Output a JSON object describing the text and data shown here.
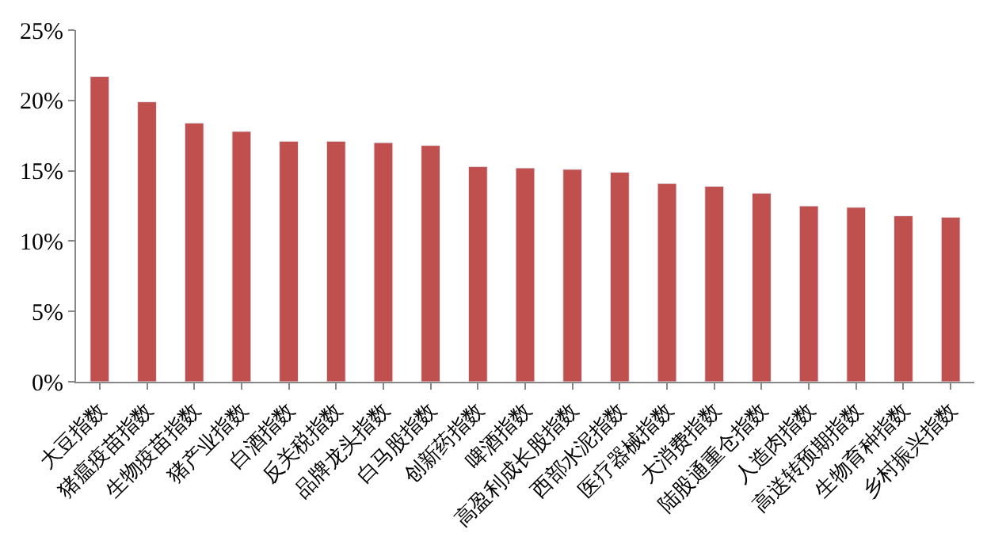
{
  "chart_data": {
    "type": "bar",
    "categories": [
      "大豆指数",
      "猪瘟疫苗指数",
      "生物疫苗指数",
      "猪产业指数",
      "白酒指数",
      "反关税指数",
      "品牌龙头指数",
      "白马股指数",
      "创新药指数",
      "啤酒指数",
      "高盈利成长股指数",
      "西部水泥指数",
      "医疗器械指数",
      "大消费指数",
      "陆股通重仓指数",
      "人造肉指数",
      "高送转预期指数",
      "生物育种指数",
      "乡村振兴指数"
    ],
    "values": [
      21.7,
      19.9,
      18.4,
      17.8,
      17.1,
      17.1,
      17.0,
      16.8,
      15.3,
      15.2,
      15.1,
      14.9,
      14.1,
      13.9,
      13.4,
      12.5,
      12.4,
      11.8,
      11.7
    ],
    "color": "#c0504d",
    "ylim": [
      0,
      25
    ],
    "yticks": [
      {
        "value": 0,
        "label": "0%"
      },
      {
        "value": 5,
        "label": "5%"
      },
      {
        "value": 10,
        "label": "10%"
      },
      {
        "value": 15,
        "label": "15%"
      },
      {
        "value": 20,
        "label": "20%"
      },
      {
        "value": 25,
        "label": "25%"
      }
    ]
  }
}
